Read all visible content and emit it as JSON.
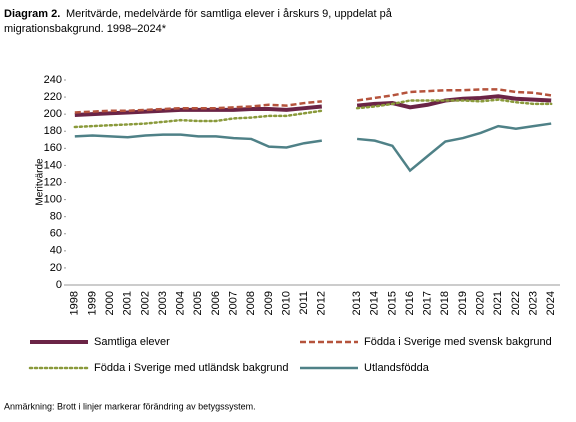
{
  "chart_data": {
    "type": "line",
    "title_label": "Diagram 2.",
    "title": "Meritvärde, medelvärde för samtliga elever i årskurs 9, uppdelat på",
    "title_line2": "migrationsbakgrund. 1998–2024*",
    "y_label": "Meritvärde",
    "note": "Anmärkning: Brott i linjer markerar förändring av betygssystem.",
    "categories": [
      "1998",
      "1999",
      "2000",
      "2001",
      "2002",
      "2003",
      "2004",
      "2005",
      "2006",
      "2007",
      "2008",
      "2009",
      "2010",
      "2011",
      "2012",
      null,
      "2013",
      "2014",
      "2015",
      "2016",
      "2017",
      "2018",
      "2019",
      "2020",
      "2021",
      "2022",
      "2023",
      "2024"
    ],
    "ylim": [
      0,
      240
    ],
    "yticks": [
      0,
      20,
      40,
      60,
      80,
      100,
      120,
      140,
      160,
      180,
      200,
      220,
      240
    ],
    "series": [
      {
        "name": "Samtliga elever",
        "color": "#6b2446",
        "style": "solid",
        "values": [
          199,
          200,
          201,
          202,
          203,
          204,
          205,
          205,
          205,
          205,
          206,
          206,
          205,
          207,
          209,
          null,
          210,
          212,
          213,
          208,
          211,
          216,
          218,
          219,
          221,
          218,
          217,
          216
        ]
      },
      {
        "name": "Födda i Sverige med svensk bakgrund",
        "color": "#b5533c",
        "style": "dashed",
        "values": [
          202,
          203,
          204,
          204,
          205,
          206,
          207,
          207,
          207,
          208,
          209,
          211,
          210,
          213,
          215,
          null,
          216,
          219,
          222,
          226,
          227,
          228,
          228,
          229,
          229,
          226,
          225,
          222
        ]
      },
      {
        "name": "Födda i Sverige med utländsk bakgrund",
        "color": "#8a9a3b",
        "style": "dotted",
        "values": [
          185,
          186,
          187,
          188,
          189,
          191,
          193,
          192,
          192,
          195,
          196,
          198,
          198,
          201,
          204,
          null,
          207,
          209,
          212,
          216,
          216,
          216,
          216,
          215,
          217,
          214,
          212,
          212
        ]
      },
      {
        "name": "Utlandsfödda",
        "color": "#4f8187",
        "style": "solid",
        "values": [
          174,
          175,
          174,
          173,
          175,
          176,
          176,
          174,
          174,
          172,
          171,
          162,
          161,
          166,
          169,
          null,
          171,
          169,
          163,
          134,
          151,
          168,
          172,
          178,
          186,
          183,
          186,
          189
        ]
      }
    ]
  }
}
